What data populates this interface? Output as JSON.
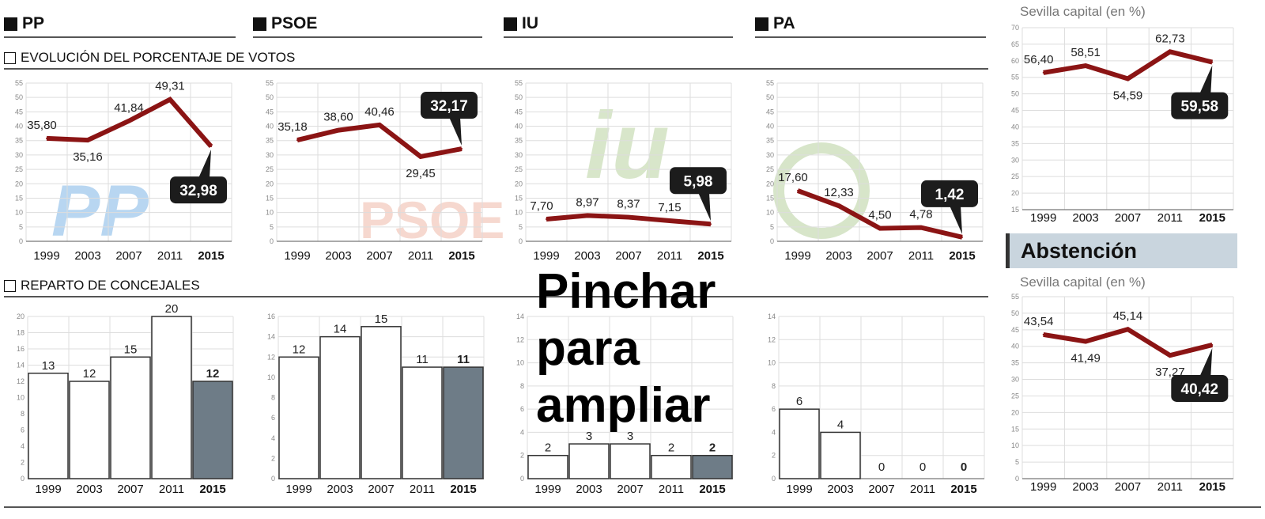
{
  "parties": [
    {
      "name": "PP"
    },
    {
      "name": "PSOE"
    },
    {
      "name": "IU"
    },
    {
      "name": "PA"
    }
  ],
  "sections": {
    "votes": "EVOLUCIÓN DEL PORCENTAJE DE VOTOS",
    "seats": "REPARTO DE CONCEJALES"
  },
  "logos": {
    "pp": "PP",
    "psoe": "PSOE",
    "iu": "iu",
    "pa": "PA"
  },
  "right": {
    "participation_subtitle": "Sevilla capital (en %)",
    "abstention_title": "Abstención",
    "abstention_subtitle": "Sevilla capital (en %)"
  },
  "overlay": {
    "line1": "Pinchar",
    "line2": "para",
    "line3": "ampliar"
  },
  "colors": {
    "line": "#8b1414",
    "callout": "#1c1c1c",
    "bar_current": "#6e7c87",
    "bar": "#ffffff",
    "abstention_band": "#c9d5de"
  },
  "chart_data": [
    {
      "id": "pp-votes",
      "type": "line",
      "categories": [
        "1999",
        "2003",
        "2007",
        "2011",
        "2015"
      ],
      "values": [
        35.8,
        35.16,
        41.84,
        49.31,
        32.98
      ],
      "labels": [
        "35,80",
        "35,16",
        "41,84",
        "49,31",
        "32,98"
      ],
      "ylim": [
        0,
        55
      ],
      "ystep": 5
    },
    {
      "id": "psoe-votes",
      "type": "line",
      "categories": [
        "1999",
        "2003",
        "2007",
        "2011",
        "2015"
      ],
      "values": [
        35.18,
        38.6,
        40.46,
        29.45,
        32.17
      ],
      "labels": [
        "35,18",
        "38,60",
        "40,46",
        "29,45",
        "32,17"
      ],
      "ylim": [
        0,
        55
      ],
      "ystep": 5
    },
    {
      "id": "iu-votes",
      "type": "line",
      "categories": [
        "1999",
        "2003",
        "2007",
        "2011",
        "2015"
      ],
      "values": [
        7.7,
        8.97,
        8.37,
        7.15,
        5.98
      ],
      "labels": [
        "7,70",
        "8,97",
        "8,37",
        "7,15",
        "5,98"
      ],
      "ylim": [
        0,
        55
      ],
      "ystep": 5
    },
    {
      "id": "pa-votes",
      "type": "line",
      "categories": [
        "1999",
        "2003",
        "2007",
        "2011",
        "2015"
      ],
      "values": [
        17.6,
        12.33,
        4.5,
        4.78,
        1.42
      ],
      "labels": [
        "17,60",
        "12,33",
        "4,50",
        "4,78",
        "1,42"
      ],
      "ylim": [
        0,
        55
      ],
      "ystep": 5
    },
    {
      "id": "participation",
      "type": "line",
      "categories": [
        "1999",
        "2003",
        "2007",
        "2011",
        "2015"
      ],
      "values": [
        56.4,
        58.51,
        54.59,
        62.73,
        59.58
      ],
      "labels": [
        "56,40",
        "58,51",
        "54,59",
        "62,73",
        "59,58"
      ],
      "ylim": [
        15,
        70
      ],
      "ystep": 5
    },
    {
      "id": "abstention",
      "type": "line",
      "categories": [
        "1999",
        "2003",
        "2007",
        "2011",
        "2015"
      ],
      "values": [
        43.54,
        41.49,
        45.14,
        37.27,
        40.42
      ],
      "labels": [
        "43,54",
        "41,49",
        "45,14",
        "37,27",
        "40,42"
      ],
      "ylim": [
        0,
        55
      ],
      "ystep": 5
    },
    {
      "id": "pp-seats",
      "type": "bar",
      "categories": [
        "1999",
        "2003",
        "2007",
        "2011",
        "2015"
      ],
      "values": [
        13,
        12,
        15,
        20,
        12
      ],
      "labels": [
        "13",
        "12",
        "15",
        "20",
        "12"
      ],
      "ylim": [
        0,
        20
      ],
      "ystep": 2
    },
    {
      "id": "psoe-seats",
      "type": "bar",
      "categories": [
        "1999",
        "2003",
        "2007",
        "2011",
        "2015"
      ],
      "values": [
        12,
        14,
        15,
        11,
        11
      ],
      "labels": [
        "12",
        "14",
        "15",
        "11",
        "11"
      ],
      "ylim": [
        0,
        16
      ],
      "ystep": 2
    },
    {
      "id": "iu-seats",
      "type": "bar",
      "categories": [
        "1999",
        "2003",
        "2007",
        "2011",
        "2015"
      ],
      "values": [
        2,
        3,
        3,
        2,
        2
      ],
      "labels": [
        "2",
        "3",
        "3",
        "2",
        "2"
      ],
      "ylim": [
        0,
        14
      ],
      "ystep": 2
    },
    {
      "id": "pa-seats",
      "type": "bar",
      "categories": [
        "1999",
        "2003",
        "2007",
        "2011",
        "2015"
      ],
      "values": [
        6,
        4,
        0,
        0,
        0
      ],
      "labels": [
        "6",
        "4",
        "0",
        "0",
        "0"
      ],
      "ylim": [
        0,
        14
      ],
      "ystep": 2
    }
  ]
}
